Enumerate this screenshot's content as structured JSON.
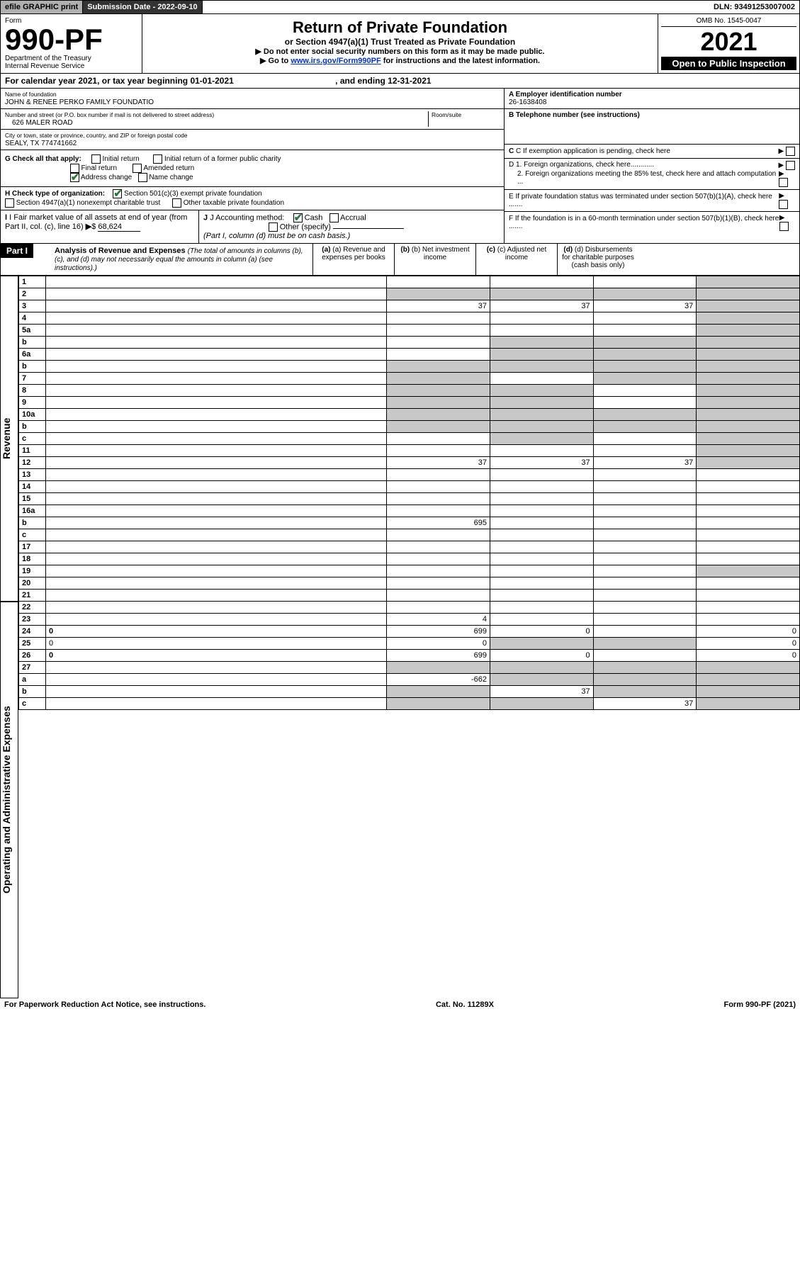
{
  "topbar": {
    "efile": "efile GRAPHIC print",
    "submission_label": "Submission Date - 2022-09-10",
    "dln": "DLN: 93491253007002"
  },
  "header": {
    "form_label": "Form",
    "form_no": "990-PF",
    "dept": "Department of the Treasury",
    "irs": "Internal Revenue Service",
    "title": "Return of Private Foundation",
    "subtitle": "or Section 4947(a)(1) Trust Treated as Private Foundation",
    "instr1": "▶ Do not enter social security numbers on this form as it may be made public.",
    "instr2_pre": "▶ Go to ",
    "instr2_link": "www.irs.gov/Form990PF",
    "instr2_post": " for instructions and the latest information.",
    "omb": "OMB No. 1545-0047",
    "year": "2021",
    "open_pub": "Open to Public Inspection"
  },
  "calendar": {
    "text": "For calendar year 2021, or tax year beginning 01-01-2021",
    "ending": ", and ending 12-31-2021"
  },
  "foundation": {
    "name_label": "Name of foundation",
    "name": "JOHN & RENEE PERKO FAMILY FOUNDATIO",
    "addr_label": "Number and street (or P.O. box number if mail is not delivered to street address)",
    "room_label": "Room/suite",
    "addr": "626 MALER ROAD",
    "city_label": "City or town, state or province, country, and ZIP or foreign postal code",
    "city": "SEALY, TX  774741662",
    "ein_label": "A Employer identification number",
    "ein": "26-1638408",
    "tel_label": "B Telephone number (see instructions)",
    "c_label": "C If exemption application is pending, check here",
    "d1": "D 1. Foreign organizations, check here............",
    "d2": "2. Foreign organizations meeting the 85% test, check here and attach computation ...",
    "e_label": "E  If private foundation status was terminated under section 507(b)(1)(A), check here .......",
    "f_label": "F  If the foundation is in a 60-month termination under section 507(b)(1)(B), check here ......."
  },
  "g": {
    "label": "G Check all that apply:",
    "initial": "Initial return",
    "initial_former": "Initial return of a former public charity",
    "final": "Final return",
    "amended": "Amended return",
    "address": "Address change",
    "name_change": "Name change"
  },
  "h": {
    "label": "H Check type of organization:",
    "501c3": "Section 501(c)(3) exempt private foundation",
    "4947": "Section 4947(a)(1) nonexempt charitable trust",
    "other": "Other taxable private foundation"
  },
  "i": {
    "label": "I Fair market value of all assets at end of year (from Part II, col. (c), line 16)",
    "value": "68,624"
  },
  "j": {
    "label": "J Accounting method:",
    "cash": "Cash",
    "accrual": "Accrual",
    "other": "Other (specify)",
    "note": "(Part I, column (d) must be on cash basis.)"
  },
  "part1": {
    "label": "Part I",
    "title": "Analysis of Revenue and Expenses",
    "note": "(The total of amounts in columns (b), (c), and (d) may not necessarily equal the amounts in column (a) (see instructions).)",
    "col_a": "(a) Revenue and expenses per books",
    "col_b": "(b) Net investment income",
    "col_c": "(c) Adjusted net income",
    "col_d": "(d) Disbursements for charitable purposes (cash basis only)"
  },
  "side_labels": {
    "revenue": "Revenue",
    "expenses": "Operating and Administrative Expenses"
  },
  "rows": [
    {
      "n": "1",
      "d": "",
      "a": "",
      "b": "",
      "c": "",
      "shade_d": true,
      "shade_b": false,
      "shade_c": false
    },
    {
      "n": "2",
      "d": "",
      "a": "",
      "b": "",
      "c": "",
      "shade_a": true,
      "shade_b": true,
      "shade_c": true,
      "shade_d": true
    },
    {
      "n": "3",
      "d": "",
      "a": "37",
      "b": "37",
      "c": "37",
      "shade_d": true
    },
    {
      "n": "4",
      "d": "",
      "a": "",
      "b": "",
      "c": "",
      "shade_d": true
    },
    {
      "n": "5a",
      "d": "",
      "a": "",
      "b": "",
      "c": "",
      "shade_d": true
    },
    {
      "n": "b",
      "d": "",
      "a": "",
      "b": "",
      "c": "",
      "shade_a": false,
      "shade_b": true,
      "shade_c": true,
      "shade_d": true,
      "inline": true
    },
    {
      "n": "6a",
      "d": "",
      "a": "",
      "b": "",
      "c": "",
      "shade_b": true,
      "shade_c": true,
      "shade_d": true
    },
    {
      "n": "b",
      "d": "",
      "a": "",
      "b": "",
      "c": "",
      "shade_a": true,
      "shade_b": true,
      "shade_c": true,
      "shade_d": true,
      "inline": true
    },
    {
      "n": "7",
      "d": "",
      "a": "",
      "b": "",
      "c": "",
      "shade_a": true,
      "shade_c": true,
      "shade_d": true
    },
    {
      "n": "8",
      "d": "",
      "a": "",
      "b": "",
      "c": "",
      "shade_a": true,
      "shade_b": true,
      "shade_d": true
    },
    {
      "n": "9",
      "d": "",
      "a": "",
      "b": "",
      "c": "",
      "shade_a": true,
      "shade_b": true,
      "shade_d": true
    },
    {
      "n": "10a",
      "d": "",
      "a": "",
      "b": "",
      "c": "",
      "shade_a": true,
      "shade_b": true,
      "shade_c": true,
      "shade_d": true,
      "inline": true
    },
    {
      "n": "b",
      "d": "",
      "a": "",
      "b": "",
      "c": "",
      "shade_a": true,
      "shade_b": true,
      "shade_c": true,
      "shade_d": true,
      "inline": true
    },
    {
      "n": "c",
      "d": "",
      "a": "",
      "b": "",
      "c": "",
      "shade_b": true,
      "shade_d": true
    },
    {
      "n": "11",
      "d": "",
      "a": "",
      "b": "",
      "c": "",
      "shade_d": true
    },
    {
      "n": "12",
      "d": "",
      "a": "37",
      "b": "37",
      "c": "37",
      "bold": true,
      "shade_d": true
    },
    {
      "n": "13",
      "d": "",
      "a": "",
      "b": "",
      "c": ""
    },
    {
      "n": "14",
      "d": "",
      "a": "",
      "b": "",
      "c": ""
    },
    {
      "n": "15",
      "d": "",
      "a": "",
      "b": "",
      "c": ""
    },
    {
      "n": "16a",
      "d": "",
      "a": "",
      "b": "",
      "c": ""
    },
    {
      "n": "b",
      "d": "",
      "a": "695",
      "b": "",
      "c": ""
    },
    {
      "n": "c",
      "d": "",
      "a": "",
      "b": "",
      "c": ""
    },
    {
      "n": "17",
      "d": "",
      "a": "",
      "b": "",
      "c": ""
    },
    {
      "n": "18",
      "d": "",
      "a": "",
      "b": "",
      "c": ""
    },
    {
      "n": "19",
      "d": "",
      "a": "",
      "b": "",
      "c": "",
      "shade_d": true
    },
    {
      "n": "20",
      "d": "",
      "a": "",
      "b": "",
      "c": ""
    },
    {
      "n": "21",
      "d": "",
      "a": "",
      "b": "",
      "c": ""
    },
    {
      "n": "22",
      "d": "",
      "a": "",
      "b": "",
      "c": ""
    },
    {
      "n": "23",
      "d": "",
      "a": "4",
      "b": "",
      "c": ""
    },
    {
      "n": "24",
      "d": "0",
      "a": "699",
      "b": "0",
      "c": "",
      "bold": true
    },
    {
      "n": "25",
      "d": "0",
      "a": "0",
      "b": "",
      "c": "",
      "shade_b": true,
      "shade_c": true
    },
    {
      "n": "26",
      "d": "0",
      "a": "699",
      "b": "0",
      "c": "",
      "bold": true
    },
    {
      "n": "27",
      "d": "",
      "a": "",
      "b": "",
      "c": "",
      "shade_a": true,
      "shade_b": true,
      "shade_c": true,
      "shade_d": true
    },
    {
      "n": "a",
      "d": "",
      "a": "-662",
      "b": "",
      "c": "",
      "bold": true,
      "shade_b": true,
      "shade_c": true,
      "shade_d": true
    },
    {
      "n": "b",
      "d": "",
      "a": "",
      "b": "37",
      "c": "",
      "bold": true,
      "shade_a": true,
      "shade_c": true,
      "shade_d": true
    },
    {
      "n": "c",
      "d": "",
      "a": "",
      "b": "",
      "c": "37",
      "bold": true,
      "shade_a": true,
      "shade_b": true,
      "shade_d": true
    }
  ],
  "footer": {
    "pra": "For Paperwork Reduction Act Notice, see instructions.",
    "cat": "Cat. No. 11289X",
    "form": "Form 990-PF (2021)"
  },
  "colors": {
    "header_black": "#000000",
    "check_green": "#2a7a3a",
    "link_blue": "#0033cc",
    "shade_gray": "#c8c8c8",
    "btn_gray": "#b0b0b0",
    "btn_dark": "#333333"
  }
}
